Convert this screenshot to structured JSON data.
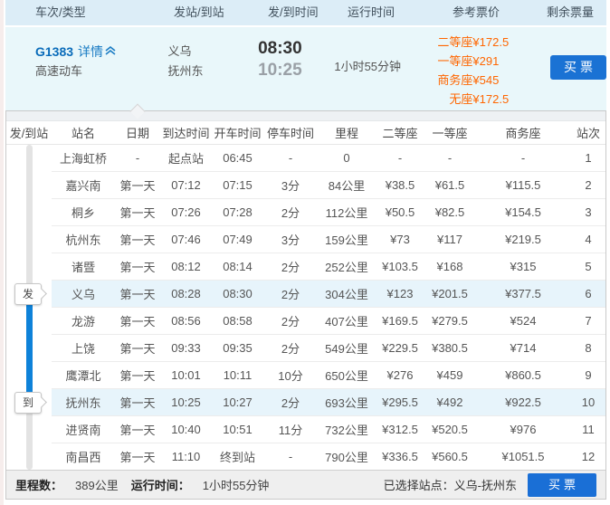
{
  "list_header": {
    "columns": [
      "车次/类型",
      "发站/到站",
      "发/到时间",
      "运行时间",
      "参考票价",
      "剩余票量"
    ]
  },
  "train": {
    "code": "G1383",
    "detail_label": "详情",
    "type": "高速动车",
    "from_station": "义乌",
    "to_station": "抚州东",
    "depart_time": "08:30",
    "arrive_time": "10:25",
    "duration": "1小时55分钟",
    "prices": [
      {
        "label": "二等座",
        "value": "¥172.5"
      },
      {
        "label": "一等座",
        "value": "¥291"
      },
      {
        "label": "商务座",
        "value": "¥545"
      },
      {
        "label": "无座",
        "value": "¥172.5"
      }
    ],
    "buy_label": "买票"
  },
  "stops_table": {
    "columns": [
      "发/到站",
      "站名",
      "日期",
      "到达时间",
      "开车时间",
      "停车时间",
      "里程",
      "二等座",
      "一等座",
      "商务座",
      "站次"
    ],
    "rows": [
      [
        "上海虹桥",
        "-",
        "起点站",
        "06:45",
        "-",
        "0",
        "-",
        "-",
        "-",
        "1"
      ],
      [
        "嘉兴南",
        "第一天",
        "07:12",
        "07:15",
        "3分",
        "84公里",
        "¥38.5",
        "¥61.5",
        "¥115.5",
        "2"
      ],
      [
        "桐乡",
        "第一天",
        "07:26",
        "07:28",
        "2分",
        "112公里",
        "¥50.5",
        "¥82.5",
        "¥154.5",
        "3"
      ],
      [
        "杭州东",
        "第一天",
        "07:46",
        "07:49",
        "3分",
        "159公里",
        "¥73",
        "¥117",
        "¥219.5",
        "4"
      ],
      [
        "诸暨",
        "第一天",
        "08:12",
        "08:14",
        "2分",
        "252公里",
        "¥103.5",
        "¥168",
        "¥315",
        "5"
      ],
      [
        "义乌",
        "第一天",
        "08:28",
        "08:30",
        "2分",
        "304公里",
        "¥123",
        "¥201.5",
        "¥377.5",
        "6"
      ],
      [
        "龙游",
        "第一天",
        "08:56",
        "08:58",
        "2分",
        "407公里",
        "¥169.5",
        "¥279.5",
        "¥524",
        "7"
      ],
      [
        "上饶",
        "第一天",
        "09:33",
        "09:35",
        "2分",
        "549公里",
        "¥229.5",
        "¥380.5",
        "¥714",
        "8"
      ],
      [
        "鹰潭北",
        "第一天",
        "10:01",
        "10:11",
        "10分",
        "650公里",
        "¥276",
        "¥459",
        "¥860.5",
        "9"
      ],
      [
        "抚州东",
        "第一天",
        "10:25",
        "10:27",
        "2分",
        "693公里",
        "¥295.5",
        "¥492",
        "¥922.5",
        "10"
      ],
      [
        "进贤南",
        "第一天",
        "10:40",
        "10:51",
        "11分",
        "732公里",
        "¥312.5",
        "¥520.5",
        "¥976",
        "11"
      ],
      [
        "南昌西",
        "第一天",
        "11:10",
        "终到站",
        "-",
        "790公里",
        "¥336.5",
        "¥560.5",
        "¥1051.5",
        "12"
      ]
    ],
    "depart_tag": "发",
    "arrive_tag": "到",
    "depart_row_index": 5,
    "arrive_row_index": 9
  },
  "summary": {
    "mileage_label": "里程数：",
    "mileage_value": "389公里",
    "duration_label": "运行时间：",
    "duration_value": "1小时55分钟",
    "selected_stations": "已选择站点：义乌-抚州东",
    "buy_label": "买票"
  },
  "colors": {
    "accent_blue": "#1a72d4",
    "link_blue": "#0a6cba",
    "price_orange": "#ff6600",
    "timeline_blue": "#0e82d9",
    "header_bg": "#dcedf7",
    "expanded_row_bg": "#e9f7fa",
    "highlight_row_bg": "#e7f4fb",
    "summary_bg": "#efefef"
  }
}
